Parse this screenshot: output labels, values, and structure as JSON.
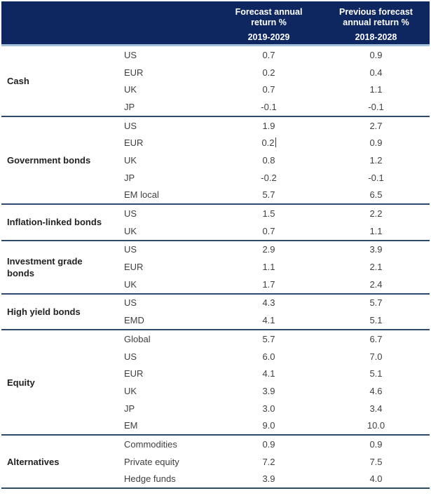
{
  "header": {
    "columns": [
      {
        "title": "Forecast annual return %",
        "range": "2019-2029"
      },
      {
        "title": "Previous forecast annual return %",
        "range": "2018-2028"
      }
    ]
  },
  "sections": [
    {
      "category": "Cash",
      "rows": [
        {
          "label": "US",
          "forecast": "0.7",
          "previous": "0.9"
        },
        {
          "label": "EUR",
          "forecast": "0.2",
          "previous": "0.4"
        },
        {
          "label": "UK",
          "forecast": "0.7",
          "previous": "1.1"
        },
        {
          "label": "JP",
          "forecast": "-0.1",
          "previous": "-0.1"
        }
      ]
    },
    {
      "category": "Government bonds",
      "rows": [
        {
          "label": "US",
          "forecast": "1.9",
          "previous": "2.7"
        },
        {
          "label": "EUR",
          "forecast": "0.2",
          "previous": "0.9",
          "has_text_cursor": true
        },
        {
          "label": "UK",
          "forecast": "0.8",
          "previous": "1.2"
        },
        {
          "label": "JP",
          "forecast": "-0.2",
          "previous": "-0.1"
        },
        {
          "label": "EM local",
          "forecast": "5.7",
          "previous": "6.5"
        }
      ]
    },
    {
      "category": "Inflation-linked bonds",
      "rows": [
        {
          "label": "US",
          "forecast": "1.5",
          "previous": "2.2"
        },
        {
          "label": "UK",
          "forecast": "0.7",
          "previous": "1.1"
        }
      ]
    },
    {
      "category": "Investment grade bonds",
      "rows": [
        {
          "label": "US",
          "forecast": "2.9",
          "previous": "3.9"
        },
        {
          "label": "EUR",
          "forecast": "1.1",
          "previous": "2.1"
        },
        {
          "label": "UK",
          "forecast": "1.7",
          "previous": "2.4"
        }
      ]
    },
    {
      "category": "High yield bonds",
      "rows": [
        {
          "label": "US",
          "forecast": "4.3",
          "previous": "5.7"
        },
        {
          "label": "EMD",
          "forecast": "4.1",
          "previous": "5.1"
        }
      ]
    },
    {
      "category": "Equity",
      "rows": [
        {
          "label": "Global",
          "forecast": "5.7",
          "previous": "6.7"
        },
        {
          "label": "US",
          "forecast": "6.0",
          "previous": "7.0"
        },
        {
          "label": "EUR",
          "forecast": "4.1",
          "previous": "5.1"
        },
        {
          "label": "UK",
          "forecast": "3.9",
          "previous": "4.6"
        },
        {
          "label": "JP",
          "forecast": "3.0",
          "previous": "3.4"
        },
        {
          "label": "EM",
          "forecast": "9.0",
          "previous": "10.0"
        }
      ]
    },
    {
      "category": "Alternatives",
      "rows": [
        {
          "label": "Commodities",
          "forecast": "0.9",
          "previous": "0.9"
        },
        {
          "label": "Private equity",
          "forecast": "7.2",
          "previous": "7.5"
        },
        {
          "label": "Hedge funds",
          "forecast": "3.9",
          "previous": "4.0"
        }
      ]
    }
  ],
  "colors": {
    "header_bg": "#0e2760",
    "header_text": "#ffffff",
    "header_underline": "#a5c2da",
    "section_divider": "#2d4a6d",
    "body_text": "#3f3f3f",
    "category_text": "#222222"
  }
}
